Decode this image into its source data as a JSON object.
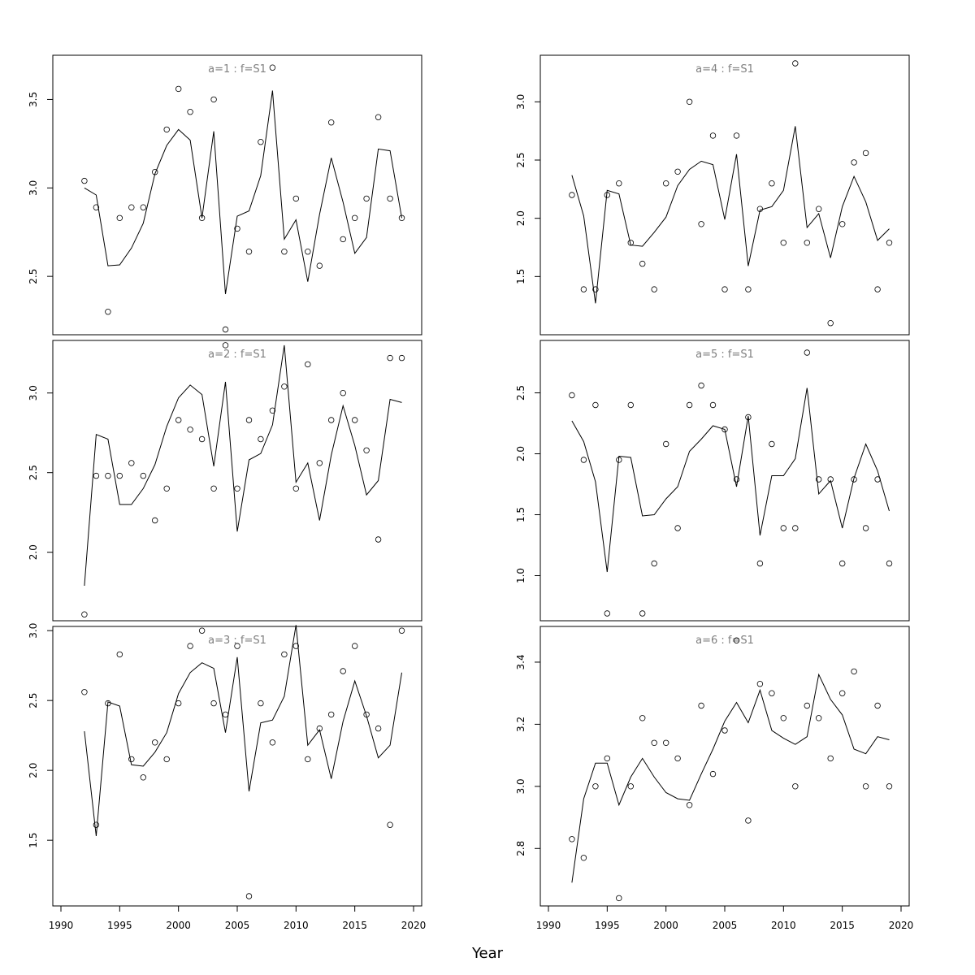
{
  "chart_data": {
    "type": "scatter",
    "xlabel": "Year",
    "x_ticks": [
      1990,
      1995,
      2000,
      2005,
      2010,
      2015,
      2020
    ],
    "years": [
      1992,
      1993,
      1994,
      1995,
      1996,
      1997,
      1998,
      1999,
      2000,
      2001,
      2002,
      2003,
      2004,
      2005,
      2006,
      2007,
      2008,
      2009,
      2010,
      2011,
      2012,
      2013,
      2014,
      2015,
      2016,
      2017,
      2018,
      2019
    ],
    "xlim": [
      1990,
      2020
    ],
    "grid": false,
    "panels": [
      {
        "title": "a=1 : f=S1",
        "ylim": [
          2.17,
          3.75
        ],
        "y_ticks": [
          2.5,
          3.0,
          3.5
        ],
        "fitted": [
          3.0,
          2.96,
          2.56,
          2.565,
          2.66,
          2.8,
          3.08,
          3.24,
          3.33,
          3.27,
          2.83,
          3.32,
          2.4,
          2.84,
          2.87,
          3.07,
          3.55,
          2.71,
          2.82,
          2.47,
          2.85,
          3.17,
          2.92,
          2.63,
          2.72,
          3.22,
          3.21,
          2.83
        ],
        "observed": [
          3.04,
          2.89,
          2.3,
          2.83,
          2.89,
          2.89,
          3.09,
          3.33,
          3.56,
          3.43,
          2.83,
          3.5,
          2.2,
          2.77,
          2.64,
          3.26,
          3.68,
          2.64,
          2.94,
          2.64,
          2.56,
          3.37,
          2.71,
          2.83,
          2.94,
          3.4,
          2.94,
          2.83
        ]
      },
      {
        "title": "a=4 : f=S1",
        "ylim": [
          1.0,
          3.4
        ],
        "y_ticks": [
          1.5,
          2.0,
          2.5,
          3.0
        ],
        "fitted": [
          2.37,
          2.02,
          1.27,
          2.24,
          2.21,
          1.77,
          1.76,
          1.88,
          2.01,
          2.28,
          2.42,
          2.49,
          2.46,
          1.99,
          2.55,
          1.59,
          2.07,
          2.1,
          2.24,
          2.79,
          1.92,
          2.04,
          1.66,
          2.1,
          2.36,
          2.14,
          1.81,
          1.91
        ],
        "observed": [
          2.2,
          1.39,
          1.39,
          2.2,
          2.3,
          1.79,
          1.61,
          1.39,
          2.3,
          2.4,
          3.0,
          1.95,
          2.71,
          1.39,
          2.71,
          1.39,
          2.08,
          2.3,
          1.79,
          3.33,
          1.79,
          2.08,
          1.1,
          1.95,
          2.48,
          2.56,
          1.39,
          1.79
        ]
      },
      {
        "title": "a=2 : f=S1",
        "ylim": [
          1.57,
          3.33
        ],
        "y_ticks": [
          2.0,
          2.5,
          3.0
        ],
        "fitted": [
          1.79,
          2.74,
          2.71,
          2.3,
          2.3,
          2.4,
          2.55,
          2.79,
          2.97,
          3.05,
          2.99,
          2.54,
          3.07,
          2.13,
          2.58,
          2.62,
          2.8,
          3.3,
          2.44,
          2.56,
          2.2,
          2.61,
          2.92,
          2.67,
          2.36,
          2.45,
          2.96,
          2.94
        ],
        "observed": [
          1.61,
          2.48,
          2.48,
          2.48,
          2.56,
          2.48,
          2.2,
          2.4,
          2.83,
          2.77,
          2.71,
          2.4,
          3.3,
          2.4,
          2.83,
          2.71,
          2.89,
          3.04,
          2.4,
          3.18,
          2.56,
          2.83,
          3.0,
          2.83,
          2.64,
          2.08,
          3.22,
          3.22
        ]
      },
      {
        "title": "a=5 : f=S1",
        "ylim": [
          0.63,
          2.93
        ],
        "y_ticks": [
          1.0,
          1.5,
          2.0,
          2.5
        ],
        "fitted": [
          2.27,
          2.1,
          1.77,
          1.03,
          1.98,
          1.97,
          1.49,
          1.5,
          1.63,
          1.73,
          2.02,
          2.12,
          2.23,
          2.2,
          1.73,
          2.31,
          1.33,
          1.82,
          1.82,
          1.96,
          2.54,
          1.67,
          1.78,
          1.39,
          1.8,
          2.08,
          1.86,
          1.53
        ],
        "observed": [
          2.48,
          1.95,
          2.4,
          0.69,
          1.95,
          2.4,
          0.69,
          1.1,
          2.08,
          1.39,
          2.4,
          2.56,
          2.4,
          2.2,
          1.79,
          2.3,
          1.1,
          2.08,
          1.39,
          1.39,
          2.83,
          1.79,
          1.79,
          1.1,
          1.79,
          1.39,
          1.79,
          1.1
        ]
      },
      {
        "title": "a=3 : f=S1",
        "ylim": [
          1.03,
          3.03
        ],
        "y_ticks": [
          1.5,
          2.0,
          2.5,
          3.0
        ],
        "fitted": [
          2.28,
          1.53,
          2.49,
          2.46,
          2.04,
          2.03,
          2.13,
          2.27,
          2.55,
          2.7,
          2.77,
          2.73,
          2.27,
          2.81,
          1.85,
          2.34,
          2.36,
          2.53,
          3.04,
          2.18,
          2.29,
          1.94,
          2.35,
          2.64,
          2.39,
          2.09,
          2.18,
          2.7
        ],
        "observed": [
          2.56,
          1.61,
          2.48,
          2.83,
          2.08,
          1.95,
          2.2,
          2.08,
          2.48,
          2.89,
          3.0,
          2.48,
          2.4,
          2.89,
          1.1,
          2.48,
          2.2,
          2.83,
          2.89,
          2.08,
          2.3,
          2.4,
          2.71,
          2.89,
          2.4,
          2.3,
          1.61,
          3.0
        ]
      },
      {
        "title": "a=6 : f=S1",
        "ylim": [
          2.615,
          3.515
        ],
        "y_ticks": [
          2.8,
          3.0,
          3.2,
          3.4
        ],
        "fitted": [
          2.69,
          2.96,
          3.075,
          3.075,
          2.94,
          3.03,
          3.09,
          3.03,
          2.98,
          2.96,
          2.955,
          3.04,
          3.12,
          3.21,
          3.27,
          3.205,
          3.31,
          3.18,
          3.155,
          3.135,
          3.16,
          3.36,
          3.28,
          3.23,
          3.12,
          3.105,
          3.16,
          3.15
        ],
        "observed": [
          2.83,
          2.77,
          3.0,
          3.09,
          2.64,
          3.0,
          3.22,
          3.14,
          3.14,
          3.09,
          2.94,
          3.26,
          3.04,
          3.18,
          3.47,
          2.89,
          3.33,
          3.3,
          3.22,
          3.0,
          3.26,
          3.22,
          3.09,
          3.3,
          3.37,
          3.0,
          3.26,
          3.0
        ]
      }
    ]
  }
}
